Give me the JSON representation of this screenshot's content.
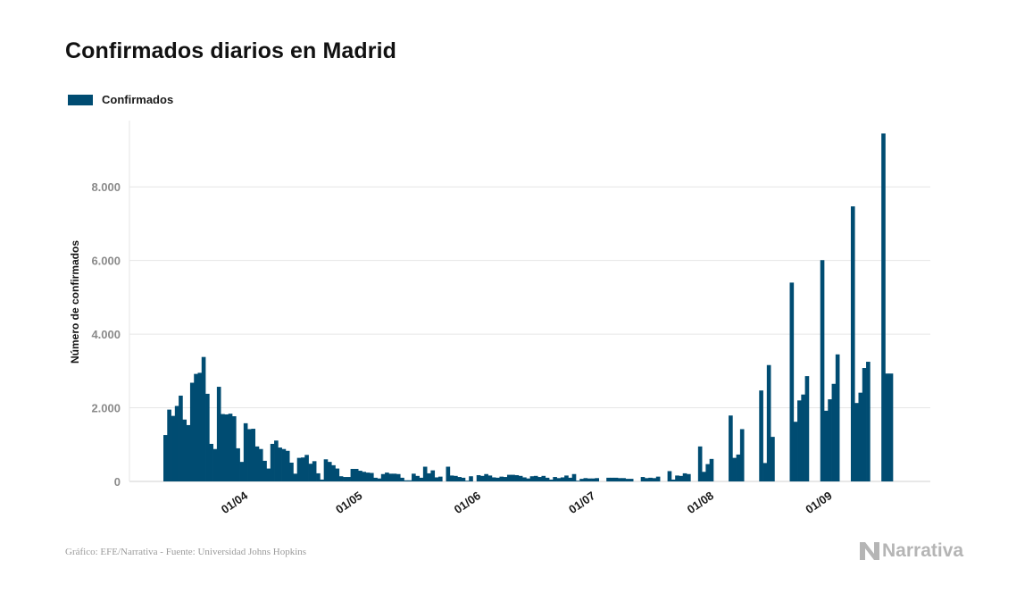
{
  "header": {
    "title": "Confirmados diarios en Madrid"
  },
  "footer": {
    "source": "Gráfico: EFE/Narrativa - Fuente: Universidad Johns Hopkins"
  },
  "brand": {
    "name": "Narrativa",
    "icon": "narrativa-logo-icon"
  },
  "colors": {
    "bar": "#004c72",
    "grid": "#e6e6e6",
    "axis": "#d0d0d0"
  },
  "chart_data": {
    "type": "bar",
    "title": "Confirmados diarios en Madrid",
    "xlabel": "",
    "ylabel": "Número de confirmados",
    "ylim": [
      0,
      9800
    ],
    "yticks": [
      0,
      2000,
      4000,
      6000,
      8000
    ],
    "ytick_labels": [
      "0",
      "2.000",
      "4.000",
      "6.000",
      "8.000"
    ],
    "grid": true,
    "legend_position": "top-left",
    "x_start": "2020-03-13",
    "x_end": "2020-09-12",
    "xticks": [
      "2020-04-01",
      "2020-05-01",
      "2020-06-01",
      "2020-07-01",
      "2020-08-01",
      "2020-09-01"
    ],
    "xtick_labels": [
      "01/04",
      "01/05",
      "01/06",
      "01/07",
      "01/08",
      "01/09"
    ],
    "series": [
      {
        "name": "Confirmados",
        "values": [
          1260,
          1950,
          1780,
          2050,
          2330,
          1680,
          1530,
          2680,
          2920,
          2950,
          3380,
          2380,
          1020,
          880,
          2570,
          1830,
          1820,
          1840,
          1770,
          900,
          530,
          1580,
          1420,
          1430,
          950,
          880,
          560,
          350,
          1020,
          1110,
          920,
          880,
          830,
          510,
          210,
          640,
          650,
          720,
          480,
          550,
          220,
          50,
          600,
          530,
          440,
          350,
          140,
          120,
          120,
          340,
          340,
          290,
          260,
          240,
          230,
          100,
          80,
          200,
          240,
          210,
          210,
          200,
          100,
          30,
          30,
          210,
          150,
          100,
          400,
          220,
          300,
          110,
          130,
          0,
          400,
          160,
          150,
          120,
          100,
          20,
          140,
          0,
          170,
          150,
          200,
          160,
          110,
          100,
          130,
          120,
          180,
          180,
          170,
          150,
          110,
          80,
          140,
          150,
          120,
          150,
          100,
          50,
          120,
          90,
          110,
          160,
          100,
          200,
          20,
          70,
          90,
          80,
          80,
          90,
          0,
          0,
          100,
          100,
          100,
          90,
          90,
          70,
          70,
          0,
          0,
          120,
          90,
          100,
          90,
          130,
          0,
          0,
          280,
          50,
          160,
          150,
          220,
          200,
          0,
          0,
          950,
          260,
          470,
          610,
          0,
          0,
          0,
          0,
          1790,
          640,
          730,
          1420,
          0,
          0,
          0,
          0,
          2470,
          500,
          3160,
          1210,
          0,
          0,
          0,
          0,
          5400,
          1620,
          2200,
          2360,
          2860,
          0,
          0,
          0,
          6010,
          1920,
          2230,
          2650,
          3450,
          0,
          0,
          0,
          7470,
          2130,
          2410,
          3080,
          3250,
          0,
          0,
          0,
          9450,
          2930,
          2930
        ]
      }
    ]
  }
}
